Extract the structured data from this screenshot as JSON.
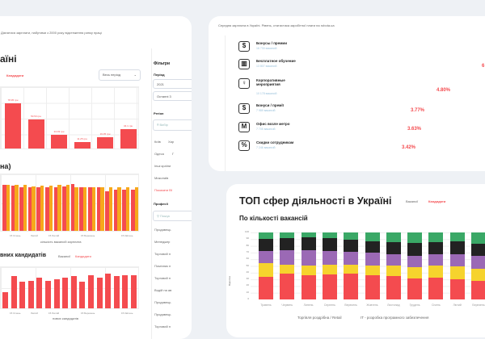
{
  "left": {
    "note": "Дізнатися зарплати, набутими з 2000 року відстеження ринку праці",
    "title": "аїні",
    "tab_candidates": "Кандидати",
    "period_select": "Весь період",
    "chart1_labels": [
      "78.95 грн",
      "50.53 грн",
      "24.03 грн",
      "11.25 грн",
      "19.35 грн",
      "34.1 грн"
    ],
    "chart2_title": "на)",
    "chart2_ticks": [
      "15 Січень",
      "Лютий",
      "15 Лютий",
      "15 Березень",
      "15 Квітень"
    ],
    "chart2_xlabel": "кількість вакансій  зарплата",
    "chart3_title": "вних кандидатів",
    "chart3_tab_vacancies": "Вакансії",
    "chart3_tab_candidates": "Кандидати",
    "chart3_ticks": [
      "15 Січень",
      "Лютий",
      "15 Лютий",
      "15 Березень",
      "15 Квітень"
    ],
    "chart3_xlabel": "нових кандидатів"
  },
  "filters": {
    "title": "Фільтри",
    "period_label": "Період",
    "year": "2021",
    "range": "Останні 3",
    "region_label": "Регіон",
    "region_placeholder": "Вибір",
    "regions": [
      "Київ",
      "Хар",
      "Одеса",
      "Г",
      "Інші країни",
      "Миколаїв"
    ],
    "show_all": "Показати ВІ",
    "profession_label": "Професії",
    "profession_placeholder": "Пошук",
    "professions": [
      "Продавець",
      "Менеджер",
      "Торговий п",
      "Помічник п",
      "Торговий п",
      "Водій на ав",
      "Продавець",
      "Продавець",
      "Торговий п"
    ]
  },
  "benefits": {
    "subtitle": "Середня зарплата в Україні. Рівень, статистика заробітної плати на robota.ua",
    "items": [
      {
        "title": "Бонусы / премии",
        "count": "16 730 вакансій",
        "percent": "",
        "icon": "bonus-icon"
      },
      {
        "title": "Бесплатное обучение",
        "count": "13 807 вакансій",
        "percent": "6",
        "icon": "book-icon"
      },
      {
        "title": "Корпоративные мероприятия",
        "count": "10 178 вакансій",
        "percent": "4.80%",
        "icon": "balloons-icon"
      },
      {
        "title": "Бонуси / премії",
        "count": "7 989 вакансій",
        "percent": "3.77%",
        "icon": "bonus-icon"
      },
      {
        "title": "Офис возле метро",
        "count": "7 705 вакансій",
        "percent": "3.63%",
        "icon": "metro-icon"
      },
      {
        "title": "Скидки сотрудникам",
        "count": "7 246 вакансій",
        "percent": "3.42%",
        "icon": "discount-icon"
      }
    ]
  },
  "top": {
    "title": "ТОП сфер діяльності в Україні",
    "tab_vacancies": "Вакансії",
    "tab_candidates": "Кандидати",
    "subtitle": "По кількості вакансій",
    "ylabel": "Відсоток",
    "legend": [
      "Торгівля роздрібна / Retail",
      "IT - розробка програмного забезпечення"
    ]
  },
  "colors": {
    "red": "#f44b4f",
    "orange": "#f7a81b",
    "yellow": "#f6d32d",
    "purple": "#9b69b5",
    "black": "#222222",
    "green": "#3aa866"
  },
  "chart_data": [
    {
      "type": "bar",
      "values": [
        78.95,
        50.53,
        24.03,
        11.25,
        19.35,
        34.1
      ],
      "ylim": [
        0,
        110
      ]
    },
    {
      "type": "bar",
      "series": [
        {
          "name": "red",
          "values": [
            95,
            93,
            90,
            90,
            90,
            90,
            90,
            91,
            96,
            90,
            90,
            90,
            82,
            85,
            85,
            85
          ]
        },
        {
          "name": "orange",
          "values": [
            95,
            95,
            95,
            92,
            93,
            93,
            95,
            95,
            90,
            90,
            90,
            90,
            90,
            90,
            90,
            90
          ]
        }
      ],
      "ylim": [
        0,
        120
      ]
    },
    {
      "type": "bar",
      "values": [
        30,
        60,
        50,
        52,
        58,
        52,
        55,
        58,
        60,
        50,
        62,
        58,
        65,
        60,
        62,
        62
      ],
      "ylim": [
        0,
        80
      ]
    },
    {
      "type": "bar",
      "stacked": true,
      "categories": [
        "Травень",
        "Червень",
        "Липень",
        "Серпень",
        "Вересень",
        "Жовтень",
        "Листопад",
        "Грудень",
        "Січень",
        "Лютий",
        "Березень"
      ],
      "yticks": [
        "100",
        "90",
        "80",
        "70",
        "60",
        "50",
        "40",
        "30",
        "20",
        "10",
        "0"
      ],
      "ylim": [
        0,
        100
      ],
      "series": [
        {
          "name": "red",
          "values": [
            34,
            38,
            36,
            37,
            38,
            36,
            35,
            31,
            32,
            30,
            28
          ]
        },
        {
          "name": "yellow",
          "values": [
            20,
            14,
            15,
            15,
            14,
            15,
            16,
            17,
            19,
            19,
            18
          ]
        },
        {
          "name": "purple",
          "values": [
            18,
            21,
            22,
            20,
            19,
            19,
            17,
            17,
            16,
            19,
            19
          ]
        },
        {
          "name": "black",
          "values": [
            18,
            19,
            20,
            19,
            18,
            17,
            17,
            19,
            19,
            19,
            18
          ]
        },
        {
          "name": "green",
          "values": [
            10,
            8,
            7,
            9,
            11,
            13,
            15,
            16,
            14,
            13,
            17
          ]
        }
      ]
    }
  ]
}
